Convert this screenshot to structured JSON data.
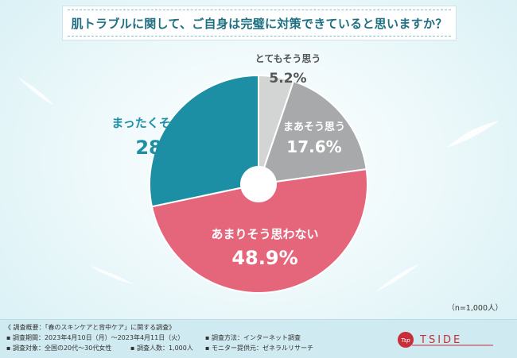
{
  "title": "肌トラブルに関して、ご自身は完璧に対策できていると思いますか？",
  "sample_size": "（n=1,000人）",
  "chart_data": {
    "type": "pie",
    "start": "top",
    "direction": "clockwise",
    "donut_hole": true,
    "slices": [
      {
        "label": "とてもそう思う",
        "value": 5.2,
        "value_text": "5.2%",
        "color": "#d3d4d4",
        "text_color": "#555555"
      },
      {
        "label": "まあそう思う",
        "value": 17.6,
        "value_text": "17.6%",
        "color": "#a8a9aa",
        "text_color": "#ffffff"
      },
      {
        "label": "あまりそう思わない",
        "value": 48.9,
        "value_text": "48.9%",
        "color": "#e5657b",
        "text_color": "#ffffff"
      },
      {
        "label": "まったくそう思わない",
        "value": 28.3,
        "value_text": "28.3%",
        "color": "#1c8fa5",
        "text_color": "#1c8fa5"
      }
    ]
  },
  "footer": {
    "heading": "《 調査概要：「春のスキンケアと背中ケア」に関する調査》",
    "period": "▪ 調査期間：2023年4月10日（月）～2023年4月11日（火）",
    "method": "▪ 調査方法：インターネット調査",
    "target": "▪ 調査対象：全国の20代～30代女性",
    "count": "▪ 調査人数：1,000人",
    "provider": "▪ モニター提供元：ゼネラルリサーチ"
  },
  "logo": {
    "mark_text": "Tsp",
    "name": "TSIDE",
    "color": "#c62f3a"
  }
}
